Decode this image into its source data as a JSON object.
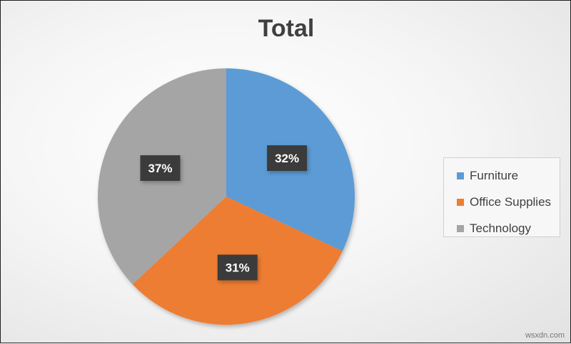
{
  "chart_data": {
    "type": "pie",
    "title": "Total",
    "categories": [
      "Furniture",
      "Office Supplies",
      "Technology"
    ],
    "values": [
      32,
      31,
      37
    ],
    "labels": [
      "32%",
      "31%",
      "37%"
    ],
    "colors": [
      "#5b9bd5",
      "#ed7d31",
      "#a5a5a5"
    ],
    "legend": "right"
  },
  "watermark": "wsxdn.com"
}
